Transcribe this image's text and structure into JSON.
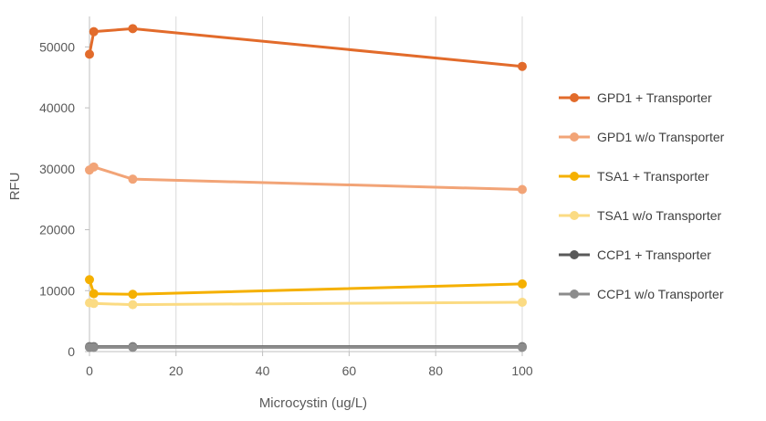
{
  "chart_data": {
    "type": "line",
    "xlabel": "Microcystin  (ug/L)",
    "ylabel": "RFU",
    "xlim": [
      0,
      100
    ],
    "ylim": [
      0,
      55000
    ],
    "x_ticks": [
      "0",
      "20",
      "40",
      "60",
      "80",
      "100"
    ],
    "y_ticks": [
      "0",
      "10000",
      "20000",
      "30000",
      "40000",
      "50000"
    ],
    "grid": "vertical",
    "legend": "right",
    "series": [
      {
        "name": "GPD1 + Transporter",
        "color": "#E26B2B",
        "x": [
          0,
          1,
          10,
          100
        ],
        "y": [
          48800,
          52500,
          53000,
          46800
        ]
      },
      {
        "name": "GPD1 w/o Transporter",
        "color": "#F2A477",
        "x": [
          0,
          1,
          10,
          100
        ],
        "y": [
          29800,
          30300,
          28300,
          26600
        ]
      },
      {
        "name": "TSA1 + Transporter",
        "color": "#F5B000",
        "x": [
          0,
          1,
          10,
          100
        ],
        "y": [
          11800,
          9500,
          9400,
          11100
        ]
      },
      {
        "name": "TSA1 w/o Transporter",
        "color": "#FBDB83",
        "x": [
          0,
          1,
          10,
          100
        ],
        "y": [
          8000,
          7900,
          7700,
          8100
        ]
      },
      {
        "name": "CCP1 + Transporter",
        "color": "#595959",
        "x": [
          0,
          1,
          10,
          100
        ],
        "y": [
          800,
          800,
          800,
          800
        ]
      },
      {
        "name": "CCP1 w/o Transporter",
        "color": "#8C8C8C",
        "x": [
          0,
          1,
          10,
          100
        ],
        "y": [
          700,
          700,
          700,
          700
        ]
      }
    ]
  }
}
